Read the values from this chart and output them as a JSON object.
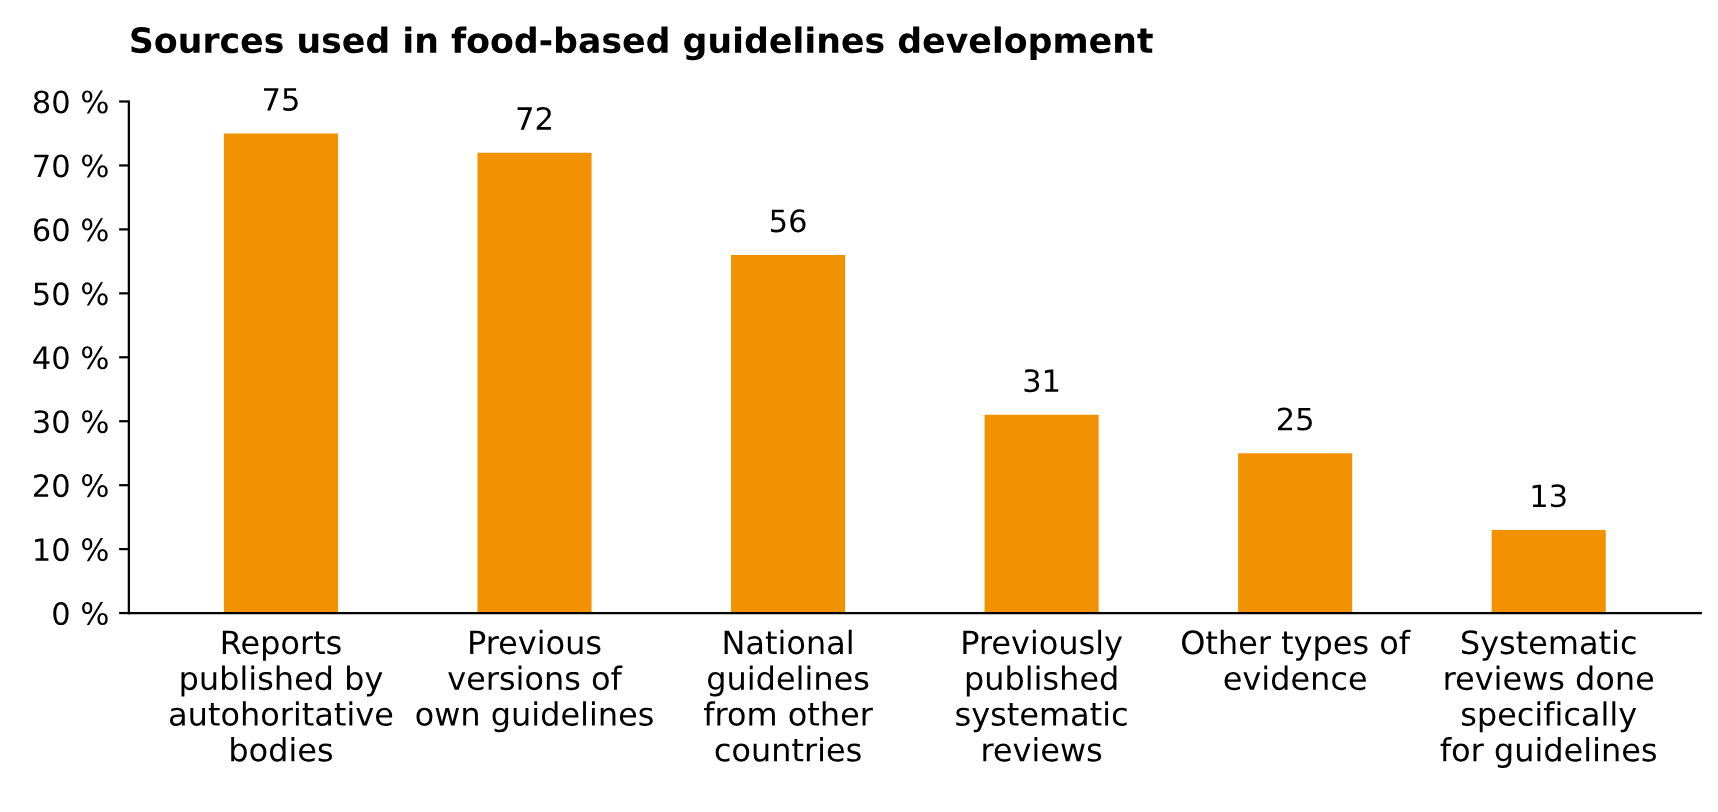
{
  "chart_data": {
    "type": "bar",
    "title": "Sources used in food-based guidelines development",
    "categories": [
      "Reports published by autohoritative bodies",
      "Previous versions of own guidelines",
      "National guidelines from other countries",
      "Previously published systematic reviews",
      "Other types of evidence",
      "Systematic reviews done specifically for guidelines"
    ],
    "values": [
      75,
      72,
      56,
      31,
      25,
      13
    ],
    "color": "#f39200",
    "ylim": [
      0,
      80
    ],
    "yticks": [
      {
        "value": 0,
        "label": "0 %"
      },
      {
        "value": 10,
        "label": "10 %"
      },
      {
        "value": 20,
        "label": "20 %"
      },
      {
        "value": 30,
        "label": "30 %"
      },
      {
        "value": 40,
        "label": "40 %"
      },
      {
        "value": 50,
        "label": "50 %"
      },
      {
        "value": 60,
        "label": "60 %"
      },
      {
        "value": 70,
        "label": "70 %"
      },
      {
        "value": 80,
        "label": "80 %"
      }
    ],
    "data_labels": true,
    "grid": false,
    "legend": false
  }
}
